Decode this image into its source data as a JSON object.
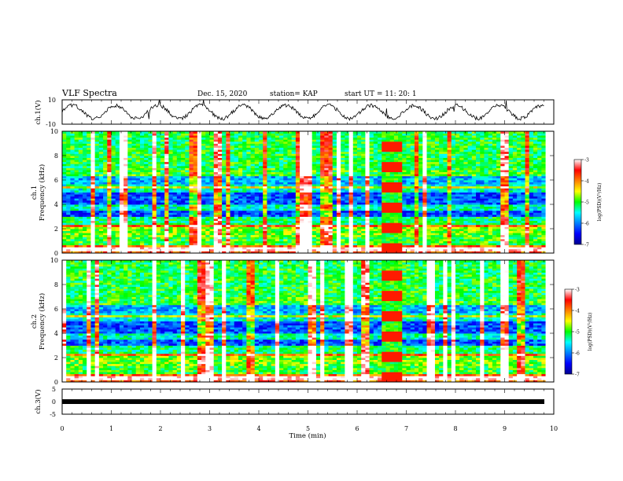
{
  "header": {
    "title": "VLF Spectra",
    "date": "Dec. 15, 2020",
    "station": "station= KAP",
    "start": "start  UT =   11: 20: 1"
  },
  "chart_data": [
    {
      "type": "line",
      "panel": "ch1-waveform",
      "ylabel": "ch.1(V)",
      "ylim": [
        -10,
        10
      ],
      "yticks": [
        "10",
        "-10"
      ],
      "xlim": [
        0,
        10
      ],
      "description_of_shape": "noisy oscillating waveform centered near 0 V, amplitude about 5 V"
    },
    {
      "type": "heatmap",
      "panel": "ch1-spectrogram",
      "ylabel_line1": "ch.1",
      "ylabel_line2": "Frequency  (kHz)",
      "ylim": [
        0,
        10
      ],
      "yticks": [
        "0",
        "2",
        "4",
        "6",
        "8",
        "10"
      ],
      "xlim": [
        0,
        10
      ],
      "colorbar": {
        "label": "log(PSD)(V²/Hz)",
        "range": [
          -7,
          -3
        ],
        "ticks": [
          "-3",
          "-4",
          "-5",
          "-6",
          "-7"
        ]
      },
      "disturbance_window_min": [
        6.5,
        6.9
      ]
    },
    {
      "type": "heatmap",
      "panel": "ch2-spectrogram",
      "ylabel_line1": "ch.2",
      "ylabel_line2": "Frequency  (kHz)",
      "ylim": [
        0,
        10
      ],
      "yticks": [
        "0",
        "2",
        "4",
        "6",
        "8",
        "10"
      ],
      "xlim": [
        0,
        10
      ],
      "colorbar": {
        "label": "log(PSD)(V²/Hz)",
        "range": [
          -7,
          -3
        ],
        "ticks": [
          "-3",
          "-4",
          "-5",
          "-6",
          "-7"
        ]
      },
      "disturbance_window_min": [
        6.5,
        6.9
      ]
    },
    {
      "type": "line",
      "panel": "ch3-waveform",
      "ylabel": "ch.3(V)",
      "ylim": [
        -5,
        5
      ],
      "yticks": [
        "5",
        "0",
        "-5"
      ],
      "xlim": [
        0,
        10
      ],
      "description_of_shape": "flat thick line near -1 V"
    }
  ],
  "xaxis": {
    "label": "Time  (min)",
    "ticks": [
      "0",
      "1",
      "2",
      "3",
      "4",
      "5",
      "6",
      "7",
      "8",
      "9",
      "10"
    ]
  }
}
